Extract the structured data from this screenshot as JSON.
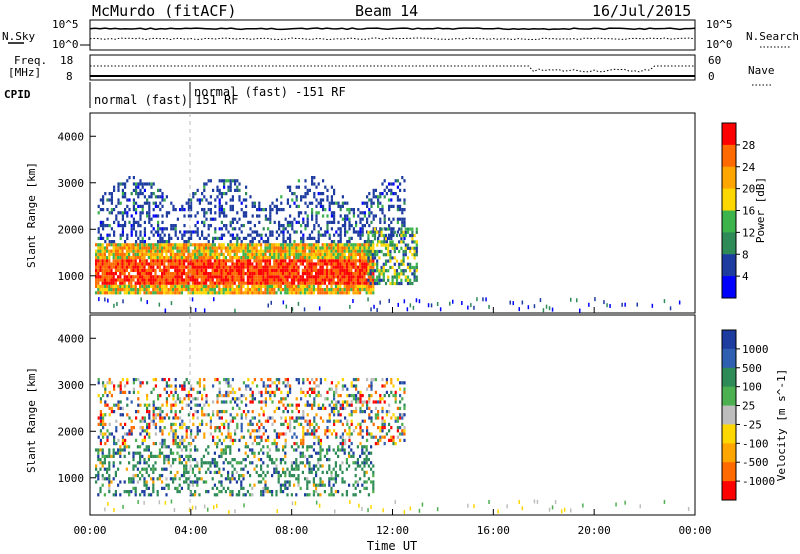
{
  "header": {
    "station": "McMurdo (fitACF)",
    "beam": "Beam 14",
    "date": "16/Jul/2015"
  },
  "noise_panel": {
    "left_label": "N.Sky",
    "left_ticks": [
      "10^5",
      "10^0"
    ],
    "right_ticks": [
      "10^5",
      "10^0"
    ],
    "right_label": "N.Search"
  },
  "freq_panel": {
    "left_label_1": "Freq.",
    "left_label_2": "[MHz]",
    "left_ticks": [
      "18",
      "8"
    ],
    "right_ticks": [
      "60",
      "0"
    ],
    "right_label": "Nave"
  },
  "cpid": {
    "label": "CPID",
    "programs": [
      "normal (fast) 151 RF",
      "normal (fast) -151 RF"
    ]
  },
  "colors": {
    "power": [
      "#0000ff",
      "#1e3ca0",
      "#2e8b57",
      "#3cb44b",
      "#ffd700",
      "#ffa500",
      "#ff6a00",
      "#ff0000"
    ],
    "velocity": [
      "#1e3ca0",
      "#2e5fb0",
      "#2e8b57",
      "#4caf50",
      "#bdbdbd",
      "#ffd700",
      "#ffa500",
      "#ff6a00",
      "#ff0000"
    ]
  },
  "chart_data": [
    {
      "type": "heatmap",
      "title": "Power",
      "ylabel": "Slant Range [km]",
      "xlabel": "Time UT",
      "x_ticks": [
        "00:00",
        "04:00",
        "08:00",
        "12:00",
        "16:00",
        "20:00",
        "00:00"
      ],
      "y_ticks": [
        "1000",
        "2000",
        "3000",
        "4000"
      ],
      "ylim": [
        200,
        4500
      ],
      "xlim_hours": [
        0,
        24
      ],
      "colorbar": {
        "label": "Power [dB]",
        "ticks": [
          "4",
          "8",
          "12",
          "16",
          "20",
          "24",
          "28"
        ],
        "range": [
          0,
          32
        ]
      },
      "echo_regions": [
        {
          "start_h": 0.2,
          "end_h": 11.2,
          "range_low_km": 600,
          "range_high_km": 1700,
          "level": "high"
        },
        {
          "start_h": 0.3,
          "end_h": 12.5,
          "range_low_km": 1700,
          "range_high_km": 3100,
          "level": "low"
        },
        {
          "start_h": 11.0,
          "end_h": 13.0,
          "range_low_km": 800,
          "range_high_km": 2000,
          "level": "medium"
        }
      ]
    },
    {
      "type": "heatmap",
      "title": "Velocity",
      "ylabel": "Slant Range [km]",
      "xlabel": "Time UT",
      "x_ticks": [
        "00:00",
        "04:00",
        "08:00",
        "12:00",
        "16:00",
        "20:00",
        "00:00"
      ],
      "y_ticks": [
        "1000",
        "2000",
        "3000",
        "4000"
      ],
      "ylim": [
        200,
        4500
      ],
      "xlim_hours": [
        0,
        24
      ],
      "colorbar": {
        "label": "Velocity [m s^-1]",
        "ticks": [
          "1000",
          "500",
          "100",
          "25",
          "-25",
          "-100",
          "-500",
          "-1000"
        ]
      },
      "echo_regions": [
        {
          "start_h": 0.2,
          "end_h": 11.2,
          "range_low_km": 600,
          "range_high_km": 1700,
          "level": "moderate-positive"
        },
        {
          "start_h": 0.3,
          "end_h": 12.5,
          "range_low_km": 1700,
          "range_high_km": 3100,
          "level": "mixed"
        }
      ]
    }
  ]
}
